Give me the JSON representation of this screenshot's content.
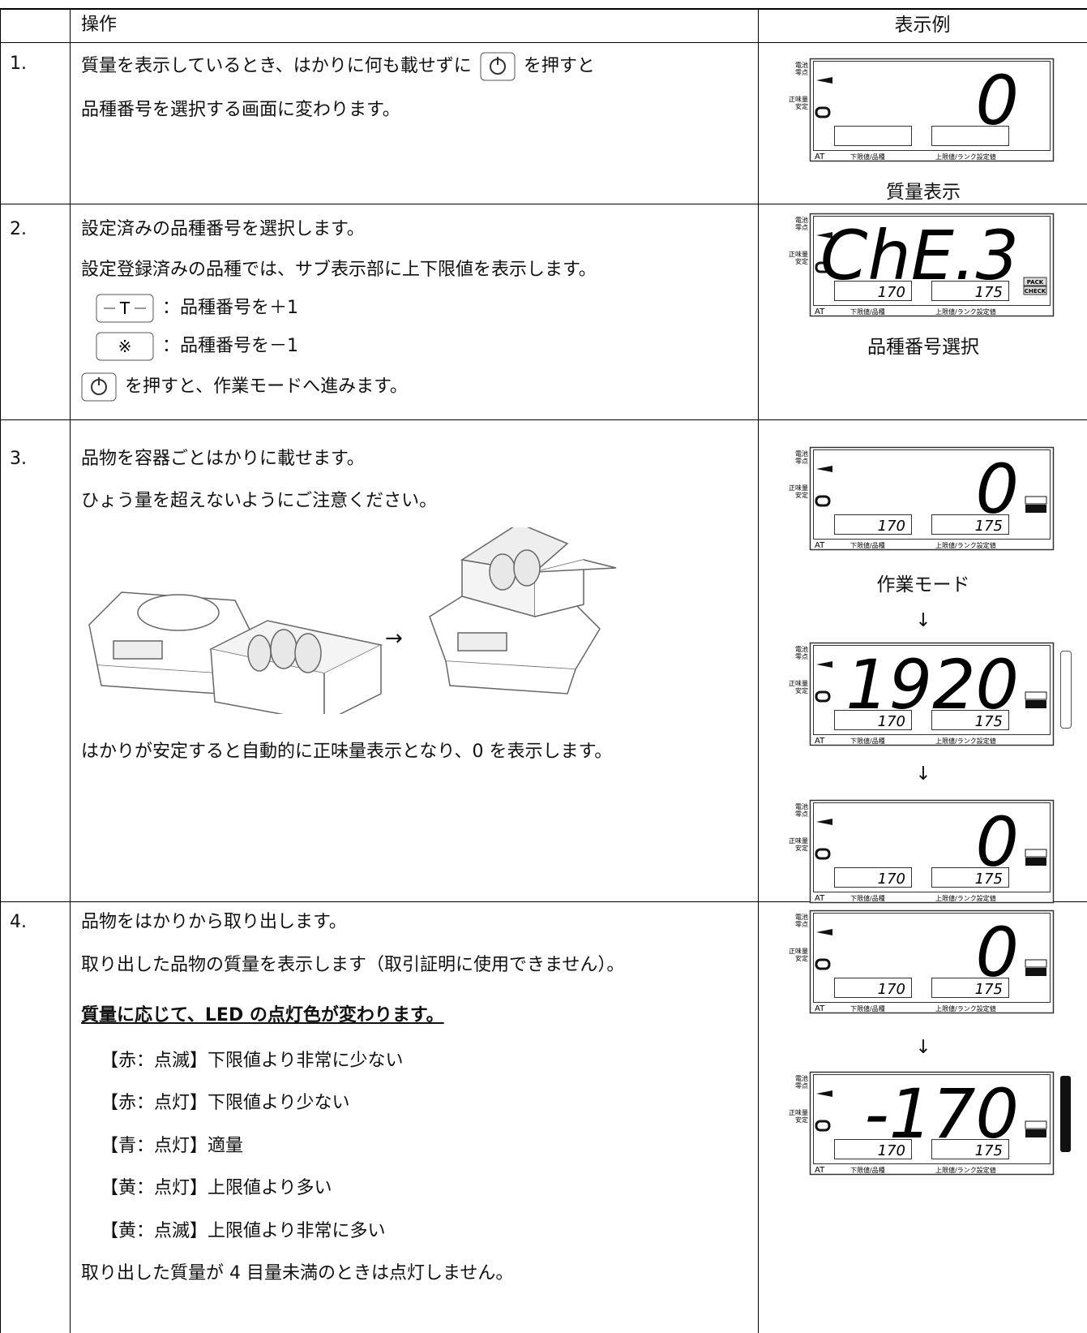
{
  "table": {
    "header": [
      "操作",
      "表示例"
    ],
    "rows": [
      {
        "number": "1.",
        "lines": [
          "質量を表示しているとき、はかりに何も載せずに",
          "を押すと",
          "品種番号を選択する画面に変わります。"
        ],
        "captions": [
          "質量表示"
        ],
        "displays": [
          {
            "main": "0"
          }
        ]
      },
      {
        "number": "2.",
        "lines": [
          "設定済みの品種番号を選択します。",
          "設定登録済みの品種では、サブ表示部に上下限値を表示します。",
          "：品種番号を＋1",
          "：品種番号を－1",
          "を押すと、作業モードへ進みます。"
        ],
        "captions": [
          "品種番号選択"
        ],
        "displays": [
          {
            "main": "ChE.3",
            "low": "170",
            "high": "175",
            "pack": "PACK",
            "check": "CHECK"
          }
        ]
      },
      {
        "number": "3.",
        "lines": [
          "品物を容器ごとはかりに載せます。",
          "ひょう量を超えないようにご注意ください。",
          "→",
          "はかりが安定すると自動的に正味量表示となり、0 を表示します。"
        ],
        "captions": [
          "作業モード",
          "↓",
          "↓"
        ],
        "displays": [
          {
            "main": "0",
            "low": "170",
            "high": "175"
          },
          {
            "main": "1920",
            "low": "170",
            "high": "175"
          },
          {
            "main": "0",
            "low": "170",
            "high": "175"
          }
        ]
      },
      {
        "number": "4.",
        "lines": [
          "品物をはかりから取り出します。",
          "取り出した品物の質量を表示します（取引証明に使用できません）。",
          "質量に応じて、LED の点灯色が変わります。",
          "【赤：点滅】下限値より非常に少ない",
          "【赤：点灯】下限値より少ない",
          "【青：点灯】適量",
          "【黄：点灯】上限値より多い",
          "【黄：点滅】上限値より非常に多い",
          "取り出した質量が 4 目量未満のときは点灯しません。"
        ],
        "captions": [
          "↓"
        ],
        "displays": [
          {
            "main": "0",
            "low": "170",
            "high": "175"
          },
          {
            "main": "-170",
            "low": "170",
            "high": "175"
          }
        ]
      }
    ]
  },
  "button_labels": {
    "tare": "T",
    "asterisk": "※"
  },
  "lcd_labels": {
    "battery": "電池",
    "zero": "零点",
    "net": "正味量",
    "stable": "安定",
    "at": "AT",
    "lower": "下限値/品種",
    "upper": "上限値/ランク設定値"
  }
}
